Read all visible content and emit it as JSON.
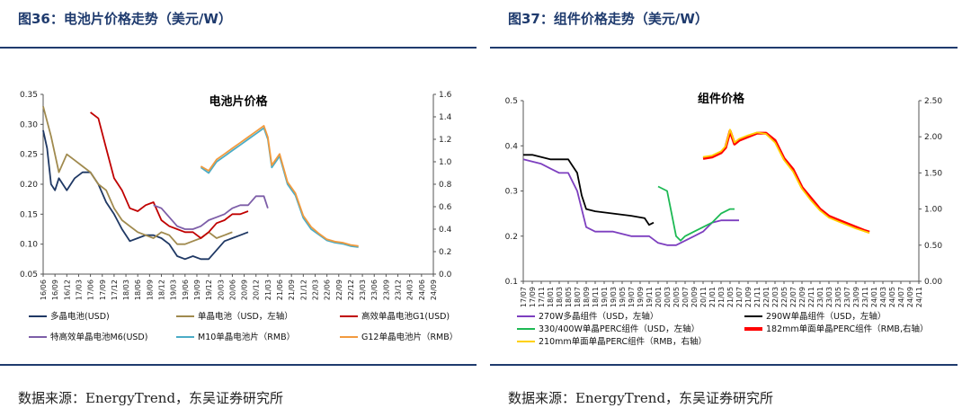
{
  "figures": [
    {
      "title": "图36：电池片价格走势（美元/W）",
      "source": "数据来源：EnergyTrend，东吴证券研究所"
    },
    {
      "title": "图37：组件价格走势（美元/W）",
      "source": "数据来源：EnergyTrend，东吴证券研究所"
    }
  ],
  "chart_data": [
    {
      "type": "line",
      "title": "电池片价格",
      "ylim": [
        0.05,
        0.35
      ],
      "y2lim": [
        0,
        1.6
      ],
      "yticks": [
        "0.05",
        "0.10",
        "0.15",
        "0.20",
        "0.25",
        "0.30",
        "0.35"
      ],
      "y2ticks": [
        "0.0",
        "0.2",
        "0.4",
        "0.6",
        "0.8",
        "1.0",
        "1.2",
        "1.4",
        "1.6"
      ],
      "xticks": [
        "16/06",
        "16/09",
        "16/12",
        "17/03",
        "17/06",
        "17/09",
        "17/12",
        "18/03",
        "18/06",
        "18/09",
        "18/12",
        "19/03",
        "19/06",
        "19/09",
        "19/12",
        "20/03",
        "20/06",
        "20/09",
        "20/12",
        "21/03",
        "21/06",
        "21/09",
        "21/12",
        "22/03",
        "22/06",
        "22/09",
        "22/12",
        "23/03",
        "23/06",
        "23/09",
        "23/12",
        "24/03",
        "24/06",
        "24/09"
      ],
      "legend": [
        "多晶电池(USD)",
        "单晶电池（USD，左轴）",
        "高效单晶电池G1(USD)",
        "特高效单晶电池M6(USD)",
        "M10单晶电池片（RMB）",
        "G12单晶电池片（RMB）"
      ],
      "colors": [
        "#1f3864",
        "#a08a4e",
        "#c00000",
        "#7d5ea8",
        "#4bacc6",
        "#f29a3e"
      ],
      "series": [
        {
          "name": "多晶电池(USD)",
          "axis": "left",
          "points": [
            [
              0,
              0.29
            ],
            [
              1,
              0.26
            ],
            [
              2,
              0.2
            ],
            [
              3,
              0.19
            ],
            [
              4,
              0.21
            ],
            [
              6,
              0.19
            ],
            [
              8,
              0.21
            ],
            [
              10,
              0.22
            ],
            [
              12,
              0.22
            ],
            [
              14,
              0.2
            ],
            [
              16,
              0.17
            ],
            [
              18,
              0.15
            ],
            [
              20,
              0.125
            ],
            [
              22,
              0.105
            ],
            [
              24,
              0.11
            ],
            [
              26,
              0.115
            ],
            [
              28,
              0.115
            ],
            [
              30,
              0.11
            ],
            [
              32,
              0.1
            ],
            [
              34,
              0.08
            ],
            [
              36,
              0.075
            ],
            [
              38,
              0.08
            ],
            [
              40,
              0.075
            ],
            [
              42,
              0.075
            ],
            [
              44,
              0.09
            ],
            [
              46,
              0.105
            ],
            [
              48,
              0.11
            ],
            [
              50,
              0.115
            ],
            [
              52,
              0.12
            ]
          ]
        },
        {
          "name": "单晶电池（USD，左轴）",
          "axis": "left",
          "points": [
            [
              0,
              0.33
            ],
            [
              2,
              0.28
            ],
            [
              4,
              0.22
            ],
            [
              6,
              0.25
            ],
            [
              8,
              0.24
            ],
            [
              10,
              0.23
            ],
            [
              12,
              0.22
            ],
            [
              14,
              0.2
            ],
            [
              16,
              0.19
            ],
            [
              18,
              0.16
            ],
            [
              20,
              0.14
            ],
            [
              22,
              0.13
            ],
            [
              24,
              0.12
            ],
            [
              26,
              0.115
            ],
            [
              28,
              0.11
            ],
            [
              30,
              0.12
            ],
            [
              32,
              0.115
            ],
            [
              34,
              0.1
            ],
            [
              36,
              0.1
            ],
            [
              38,
              0.105
            ],
            [
              40,
              0.11
            ],
            [
              42,
              0.12
            ],
            [
              44,
              0.11
            ],
            [
              46,
              0.115
            ],
            [
              48,
              0.12
            ]
          ]
        },
        {
          "name": "高效单晶电池G1(USD)",
          "axis": "left",
          "points": [
            [
              12,
              0.32
            ],
            [
              14,
              0.31
            ],
            [
              16,
              0.26
            ],
            [
              18,
              0.21
            ],
            [
              20,
              0.19
            ],
            [
              22,
              0.16
            ],
            [
              24,
              0.155
            ],
            [
              26,
              0.165
            ],
            [
              28,
              0.17
            ],
            [
              30,
              0.14
            ],
            [
              32,
              0.13
            ],
            [
              34,
              0.125
            ],
            [
              36,
              0.12
            ],
            [
              38,
              0.12
            ],
            [
              40,
              0.11
            ],
            [
              42,
              0.12
            ],
            [
              44,
              0.135
            ],
            [
              46,
              0.14
            ],
            [
              48,
              0.15
            ],
            [
              50,
              0.15
            ],
            [
              52,
              0.155
            ]
          ]
        },
        {
          "name": "特高效单晶电池M6(USD)",
          "axis": "left",
          "points": [
            [
              28,
              0.165
            ],
            [
              30,
              0.16
            ],
            [
              32,
              0.145
            ],
            [
              34,
              0.13
            ],
            [
              36,
              0.125
            ],
            [
              38,
              0.125
            ],
            [
              40,
              0.13
            ],
            [
              42,
              0.14
            ],
            [
              44,
              0.145
            ],
            [
              46,
              0.15
            ],
            [
              48,
              0.16
            ],
            [
              50,
              0.165
            ],
            [
              52,
              0.165
            ],
            [
              54,
              0.18
            ],
            [
              56,
              0.18
            ],
            [
              57,
              0.16
            ]
          ]
        },
        {
          "name": "M10单晶电池片（RMB）",
          "axis": "right",
          "points": [
            [
              40,
              0.95
            ],
            [
              42,
              0.9
            ],
            [
              44,
              1.0
            ],
            [
              46,
              1.05
            ],
            [
              48,
              1.1
            ],
            [
              50,
              1.15
            ],
            [
              52,
              1.2
            ],
            [
              54,
              1.25
            ],
            [
              56,
              1.3
            ],
            [
              57,
              1.2
            ],
            [
              58,
              0.95
            ],
            [
              60,
              1.05
            ],
            [
              62,
              0.8
            ],
            [
              64,
              0.7
            ],
            [
              66,
              0.5
            ],
            [
              68,
              0.4
            ],
            [
              70,
              0.35
            ],
            [
              72,
              0.3
            ],
            [
              74,
              0.28
            ],
            [
              76,
              0.27
            ],
            [
              78,
              0.25
            ],
            [
              80,
              0.24
            ]
          ]
        },
        {
          "name": "G12单晶电池片（RMB）",
          "axis": "right",
          "points": [
            [
              40,
              0.96
            ],
            [
              42,
              0.92
            ],
            [
              44,
              1.02
            ],
            [
              46,
              1.07
            ],
            [
              48,
              1.12
            ],
            [
              50,
              1.17
            ],
            [
              52,
              1.22
            ],
            [
              54,
              1.27
            ],
            [
              56,
              1.32
            ],
            [
              57,
              1.22
            ],
            [
              58,
              0.97
            ],
            [
              60,
              1.07
            ],
            [
              62,
              0.82
            ],
            [
              64,
              0.72
            ],
            [
              66,
              0.52
            ],
            [
              68,
              0.42
            ],
            [
              70,
              0.36
            ],
            [
              72,
              0.31
            ],
            [
              74,
              0.29
            ],
            [
              76,
              0.28
            ],
            [
              78,
              0.26
            ],
            [
              80,
              0.25
            ]
          ]
        }
      ]
    },
    {
      "type": "line",
      "title": "组件价格",
      "ylim": [
        0.1,
        0.5
      ],
      "y2lim": [
        0,
        2.5
      ],
      "yticks": [
        "0.1",
        "0.2",
        "0.3",
        "0.4",
        "0.5"
      ],
      "y2ticks": [
        "0.00",
        "0.50",
        "1.00",
        "1.50",
        "2.00",
        "2.50"
      ],
      "xticks": [
        "17/07",
        "17/09",
        "17/11",
        "18/01",
        "18/03",
        "18/05",
        "18/07",
        "18/09",
        "18/11",
        "19/01",
        "19/03",
        "19/05",
        "19/07",
        "19/09",
        "19/11",
        "20/01",
        "20/03",
        "20/05",
        "20/07",
        "20/09",
        "20/11",
        "21/01",
        "21/03",
        "21/05",
        "21/07",
        "21/09",
        "21/11",
        "22/01",
        "22/03",
        "22/05",
        "22/07",
        "22/09",
        "22/11",
        "23/01",
        "23/03",
        "23/05",
        "23/07",
        "23/09",
        "23/11",
        "24/01",
        "24/03",
        "24/05",
        "24/07",
        "24/09",
        "24/11"
      ],
      "legend": [
        "270W多晶组件（USD，左轴）",
        "290W单晶组件（USD，左轴）",
        "330/400W单晶PERC组件（USD，左轴）",
        "182mm单面单晶PERC组件（RMB,右轴）",
        "210mm单面单晶PERC组件（RMB，右轴）"
      ],
      "colors": [
        "#7d3fbf",
        "#000000",
        "#1db954",
        "#ff0000",
        "#ffd000"
      ],
      "series": [
        {
          "name": "270W多晶组件（USD，左轴）",
          "axis": "left",
          "points": [
            [
              0,
              0.37
            ],
            [
              2,
              0.365
            ],
            [
              4,
              0.36
            ],
            [
              6,
              0.35
            ],
            [
              8,
              0.34
            ],
            [
              10,
              0.34
            ],
            [
              12,
              0.3
            ],
            [
              14,
              0.22
            ],
            [
              16,
              0.21
            ],
            [
              20,
              0.21
            ],
            [
              24,
              0.2
            ],
            [
              28,
              0.2
            ],
            [
              30,
              0.185
            ],
            [
              32,
              0.18
            ],
            [
              34,
              0.18
            ],
            [
              36,
              0.19
            ],
            [
              38,
              0.2
            ],
            [
              40,
              0.21
            ],
            [
              42,
              0.23
            ],
            [
              44,
              0.235
            ],
            [
              46,
              0.235
            ],
            [
              48,
              0.235
            ]
          ]
        },
        {
          "name": "290W单晶组件（USD，左轴）",
          "axis": "left",
          "points": [
            [
              0,
              0.38
            ],
            [
              2,
              0.38
            ],
            [
              4,
              0.375
            ],
            [
              6,
              0.37
            ],
            [
              8,
              0.37
            ],
            [
              10,
              0.37
            ],
            [
              12,
              0.34
            ],
            [
              13,
              0.29
            ],
            [
              14,
              0.26
            ],
            [
              16,
              0.255
            ],
            [
              20,
              0.25
            ],
            [
              24,
              0.245
            ],
            [
              27,
              0.24
            ],
            [
              28,
              0.225
            ],
            [
              29,
              0.23
            ]
          ]
        },
        {
          "name": "330/400W单晶PERC组件（USD，左轴）",
          "axis": "left",
          "points": [
            [
              30,
              0.31
            ],
            [
              32,
              0.3
            ],
            [
              33,
              0.25
            ],
            [
              34,
              0.2
            ],
            [
              35,
              0.19
            ],
            [
              36,
              0.2
            ],
            [
              38,
              0.21
            ],
            [
              40,
              0.22
            ],
            [
              42,
              0.23
            ],
            [
              44,
              0.25
            ],
            [
              46,
              0.26
            ],
            [
              47,
              0.26
            ]
          ]
        },
        {
          "name": "182mm单面单晶PERC组件（RMB,右轴）",
          "axis": "right",
          "points": [
            [
              40,
              1.7
            ],
            [
              42,
              1.72
            ],
            [
              44,
              1.78
            ],
            [
              45,
              1.85
            ],
            [
              46,
              2.08
            ],
            [
              47,
              1.9
            ],
            [
              48,
              1.95
            ],
            [
              50,
              2.0
            ],
            [
              52,
              2.05
            ],
            [
              54,
              2.05
            ],
            [
              56,
              1.95
            ],
            [
              58,
              1.7
            ],
            [
              60,
              1.55
            ],
            [
              62,
              1.3
            ],
            [
              64,
              1.15
            ],
            [
              66,
              1.0
            ],
            [
              68,
              0.9
            ],
            [
              70,
              0.85
            ],
            [
              72,
              0.8
            ],
            [
              74,
              0.75
            ],
            [
              76,
              0.7
            ],
            [
              77,
              0.68
            ]
          ]
        },
        {
          "name": "210mm单面单晶PERC组件（RMB，右轴）",
          "axis": "right",
          "points": [
            [
              40,
              1.72
            ],
            [
              42,
              1.74
            ],
            [
              44,
              1.8
            ],
            [
              45,
              1.87
            ],
            [
              46,
              2.1
            ],
            [
              47,
              1.92
            ],
            [
              48,
              1.97
            ],
            [
              50,
              2.02
            ],
            [
              52,
              2.06
            ],
            [
              54,
              2.04
            ],
            [
              56,
              1.92
            ],
            [
              58,
              1.68
            ],
            [
              60,
              1.52
            ],
            [
              62,
              1.28
            ],
            [
              64,
              1.12
            ],
            [
              66,
              0.98
            ],
            [
              68,
              0.88
            ],
            [
              70,
              0.83
            ],
            [
              72,
              0.78
            ],
            [
              74,
              0.73
            ],
            [
              76,
              0.69
            ],
            [
              77,
              0.67
            ]
          ]
        }
      ]
    }
  ]
}
